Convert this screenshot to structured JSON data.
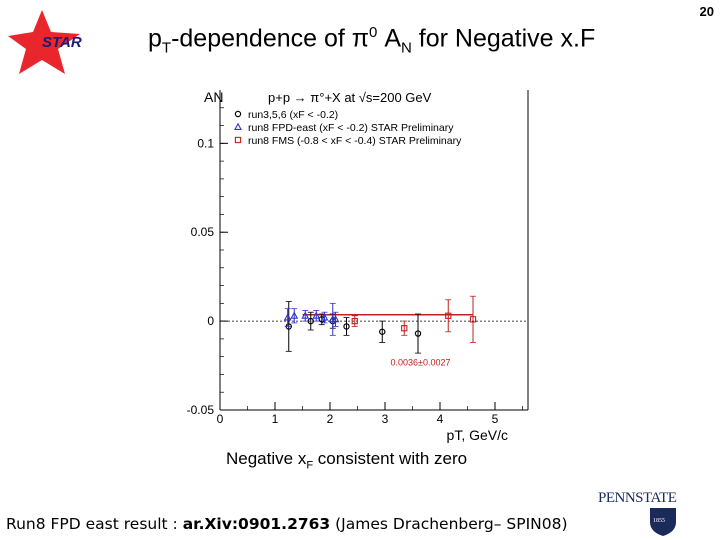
{
  "slide": {
    "page_number": "20",
    "logo_text": "STAR",
    "title_main": "p",
    "title_sub_t": "T",
    "title_mid": "-dependence of π",
    "title_sup_0": "0",
    "title_an": " A",
    "title_sub_n": "N",
    "title_end": " for Negative x.F",
    "caption_pre": "Negative x",
    "caption_sub": "F",
    "caption_post": " consistent with zero",
    "footer_pre": "Run8 FPD east result : ",
    "footer_ref": "ar.Xiv:0901.2763",
    "footer_post": " (James Drachenberg– SPIN08)",
    "pennstate_text": "PENNSTATE",
    "pennstate_year": "1855"
  },
  "colors": {
    "star_red": "#e8262c",
    "series_red": "#c0201c",
    "series_blue": "#3333cc"
  },
  "chart_data": {
    "type": "scatter",
    "title": "p+p → π°+X at √s=200 GeV",
    "xlabel": "pT, GeV/c",
    "ylabel": "AN",
    "xlim": [
      0,
      5.6
    ],
    "ylim": [
      -0.05,
      0.13
    ],
    "xticks": [
      "0",
      "1",
      "2",
      "3",
      "4",
      "5"
    ],
    "yticks": [
      "-0.05",
      "0",
      "0.05",
      "0.1"
    ],
    "legend": [
      "run3,5,6  (xF < -0.2)",
      "run8 FPD-east (xF < -0.2) STAR Preliminary",
      "run8 FMS (-0.8 < xF < -0.4) STAR Preliminary"
    ],
    "fit_label": "0.0036±0.0027",
    "fit_value": 0.0036,
    "fit_range": [
      1.5,
      4.6
    ],
    "series": [
      {
        "name": "run3,5,6",
        "marker": "circle",
        "color": "#000000",
        "points": [
          {
            "x": 1.25,
            "y": -0.003,
            "err": 0.014
          },
          {
            "x": 1.65,
            "y": 0.0,
            "err": 0.005
          },
          {
            "x": 1.85,
            "y": 0.001,
            "err": 0.003
          },
          {
            "x": 2.05,
            "y": 0.0,
            "err": 0.004
          },
          {
            "x": 2.3,
            "y": -0.003,
            "err": 0.005
          },
          {
            "x": 2.95,
            "y": -0.006,
            "err": 0.006
          },
          {
            "x": 3.6,
            "y": -0.007,
            "err": 0.011
          }
        ]
      },
      {
        "name": "run8 FPD-east",
        "marker": "triangle",
        "color": "#3333cc",
        "points": [
          {
            "x": 1.23,
            "y": 0.002,
            "err": 0.005
          },
          {
            "x": 1.35,
            "y": 0.003,
            "err": 0.004
          },
          {
            "x": 1.55,
            "y": 0.003,
            "err": 0.003
          },
          {
            "x": 1.75,
            "y": 0.003,
            "err": 0.003
          },
          {
            "x": 1.9,
            "y": 0.002,
            "err": 0.003
          },
          {
            "x": 2.1,
            "y": 0.001,
            "err": 0.004
          },
          {
            "x": 2.05,
            "y": 0.001,
            "err": 0.009
          }
        ]
      },
      {
        "name": "run8 FMS",
        "marker": "square",
        "color": "#c0201c",
        "points": [
          {
            "x": 2.45,
            "y": 0.0,
            "err": 0.003
          },
          {
            "x": 3.35,
            "y": -0.004,
            "err": 0.004
          },
          {
            "x": 4.15,
            "y": 0.003,
            "err": 0.009
          },
          {
            "x": 4.6,
            "y": 0.001,
            "err": 0.013
          }
        ]
      }
    ]
  }
}
